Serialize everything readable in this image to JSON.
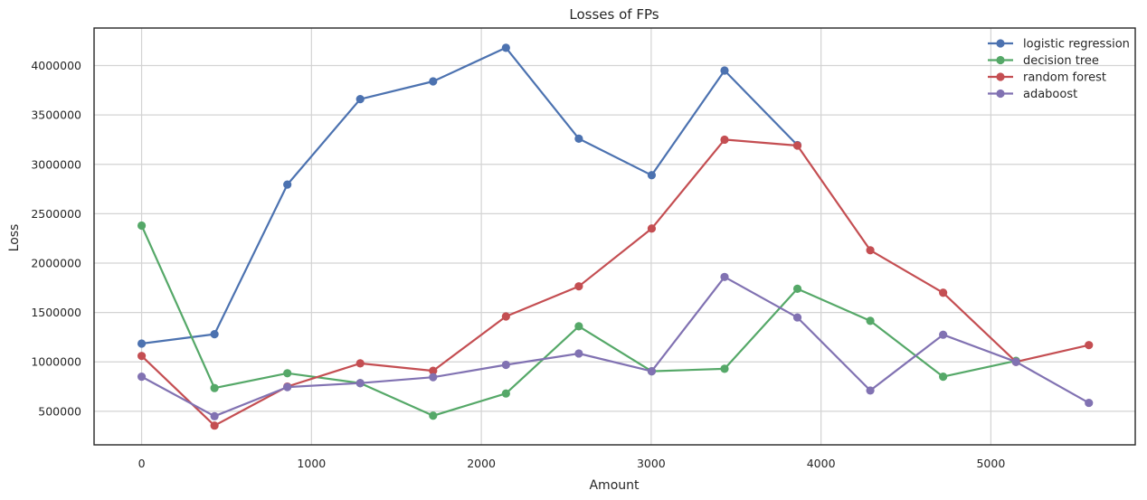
{
  "chart_data": {
    "type": "line",
    "title": "Losses of FPs",
    "xlabel": "Amount",
    "ylabel": "Loss",
    "xlim": [
      -280,
      5850
    ],
    "ylim": [
      160000,
      4380000
    ],
    "x_ticks": [
      0,
      1000,
      2000,
      3000,
      4000,
      5000
    ],
    "y_ticks": [
      500000,
      1000000,
      1500000,
      2000000,
      2500000,
      3000000,
      3500000,
      4000000
    ],
    "grid": true,
    "legend_position": "top-right",
    "series": [
      {
        "name": "logistic regression",
        "color": "#4c72b0",
        "x": [
          0,
          429,
          858,
          1287,
          1716,
          2145,
          2574,
          3003,
          3432,
          3861
        ],
        "y": [
          1185000,
          1280000,
          2795000,
          3660000,
          3840000,
          4180000,
          3260000,
          2890000,
          3950000,
          3195000
        ]
      },
      {
        "name": "decision tree",
        "color": "#55a868",
        "x": [
          0,
          429,
          858,
          1287,
          1716,
          2145,
          2574,
          3003,
          3432,
          3861,
          4290,
          4719,
          5148
        ],
        "y": [
          2380000,
          735000,
          885000,
          785000,
          455000,
          680000,
          1360000,
          905000,
          930000,
          1740000,
          1415000,
          850000,
          1010000
        ]
      },
      {
        "name": "random forest",
        "color": "#c44e52",
        "x": [
          0,
          429,
          858,
          1287,
          1716,
          2145,
          2574,
          3003,
          3432,
          3861,
          4290,
          4719,
          5148,
          5577
        ],
        "y": [
          1060000,
          355000,
          750000,
          985000,
          910000,
          1460000,
          1765000,
          2350000,
          3250000,
          3190000,
          2130000,
          1700000,
          1000000,
          1170000
        ]
      },
      {
        "name": "adaboost",
        "color": "#8172b2",
        "x": [
          0,
          429,
          858,
          1287,
          1716,
          2145,
          2574,
          3003,
          3432,
          3861,
          4290,
          4719,
          5148,
          5577
        ],
        "y": [
          850000,
          450000,
          745000,
          785000,
          845000,
          970000,
          1085000,
          905000,
          1860000,
          1450000,
          710000,
          1275000,
          1000000,
          585000
        ]
      }
    ]
  }
}
